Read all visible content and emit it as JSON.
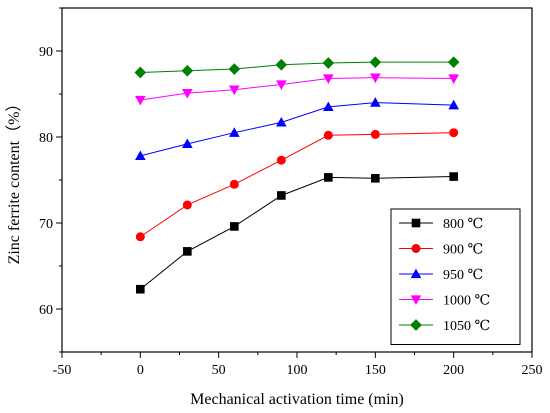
{
  "chart_data": {
    "type": "line",
    "xlabel": "Mechanical activation time (min)",
    "ylabel": "Zinc ferrite content（%）",
    "xlim": [
      -50,
      250
    ],
    "ylim": [
      55,
      95
    ],
    "xticks": [
      -50,
      0,
      50,
      100,
      150,
      200,
      250
    ],
    "yticks": [
      60,
      70,
      80,
      90
    ],
    "x": [
      0,
      30,
      60,
      90,
      120,
      150,
      200
    ],
    "legend_position": "bottom-right",
    "grid": false,
    "series": [
      {
        "name": "800 ℃",
        "color": "#000000",
        "marker": "square",
        "values": [
          62.3,
          66.7,
          69.6,
          73.2,
          75.3,
          75.2,
          75.4
        ]
      },
      {
        "name": "900 ℃",
        "color": "#ff0000",
        "marker": "circle",
        "values": [
          68.4,
          72.1,
          74.5,
          77.3,
          80.2,
          80.3,
          80.5
        ]
      },
      {
        "name": "950 ℃",
        "color": "#0000ff",
        "marker": "triangle-up",
        "values": [
          77.8,
          79.2,
          80.5,
          81.7,
          83.5,
          84.0,
          83.7
        ]
      },
      {
        "name": "1000 ℃",
        "color": "#ff00ff",
        "marker": "triangle-down",
        "values": [
          84.3,
          85.1,
          85.5,
          86.1,
          86.8,
          86.9,
          86.8
        ]
      },
      {
        "name": "1050 ℃",
        "color": "#008000",
        "marker": "diamond",
        "values": [
          87.5,
          87.7,
          87.9,
          88.4,
          88.6,
          88.7,
          88.7
        ]
      }
    ]
  }
}
